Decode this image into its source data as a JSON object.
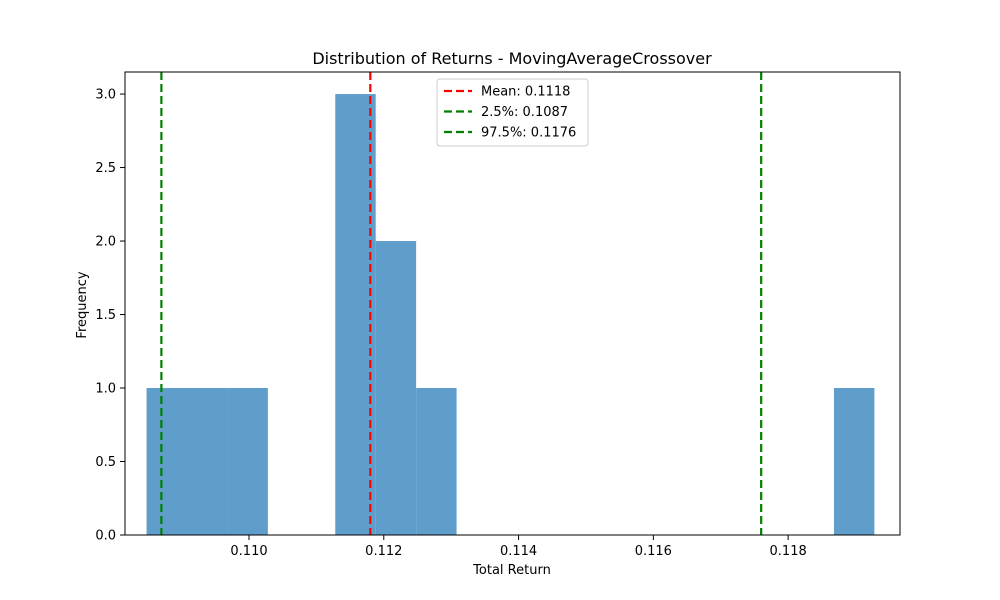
{
  "chart_data": {
    "type": "bar",
    "title": "Distribution of Returns - MovingAverageCrossover",
    "xlabel": "Total Return",
    "ylabel": "Frequency",
    "xlim": [
      0.10816,
      0.11966
    ],
    "ylim": [
      0,
      3.15
    ],
    "xticks": [
      {
        "value": 0.11,
        "label": "0.110"
      },
      {
        "value": 0.112,
        "label": "0.112"
      },
      {
        "value": 0.114,
        "label": "0.114"
      },
      {
        "value": 0.116,
        "label": "0.116"
      },
      {
        "value": 0.118,
        "label": "0.118"
      }
    ],
    "yticks": [
      {
        "value": 0.0,
        "label": "0.0"
      },
      {
        "value": 0.5,
        "label": "0.5"
      },
      {
        "value": 1.0,
        "label": "1.0"
      },
      {
        "value": 1.5,
        "label": "1.5"
      },
      {
        "value": 2.0,
        "label": "2.0"
      },
      {
        "value": 2.5,
        "label": "2.5"
      },
      {
        "value": 3.0,
        "label": "3.0"
      }
    ],
    "bars": [
      {
        "x0": 0.10848,
        "x1": 0.10908,
        "count": 1
      },
      {
        "x0": 0.10908,
        "x1": 0.10968,
        "count": 1
      },
      {
        "x0": 0.10968,
        "x1": 0.11028,
        "count": 1
      },
      {
        "x0": 0.11128,
        "x1": 0.11188,
        "count": 3
      },
      {
        "x0": 0.11188,
        "x1": 0.11248,
        "count": 2
      },
      {
        "x0": 0.11248,
        "x1": 0.11308,
        "count": 1
      },
      {
        "x0": 0.11868,
        "x1": 0.11928,
        "count": 1
      }
    ],
    "bar_color": "#5f9ecb",
    "vlines": [
      {
        "value": 0.1118,
        "label": "Mean: 0.1118",
        "color": "#ff0000"
      },
      {
        "value": 0.1087,
        "label": "2.5%: 0.1087",
        "color": "#008000"
      },
      {
        "value": 0.1176,
        "label": "97.5%: 0.1176",
        "color": "#008000"
      }
    ],
    "legend_position": "upper center",
    "grid": false
  }
}
